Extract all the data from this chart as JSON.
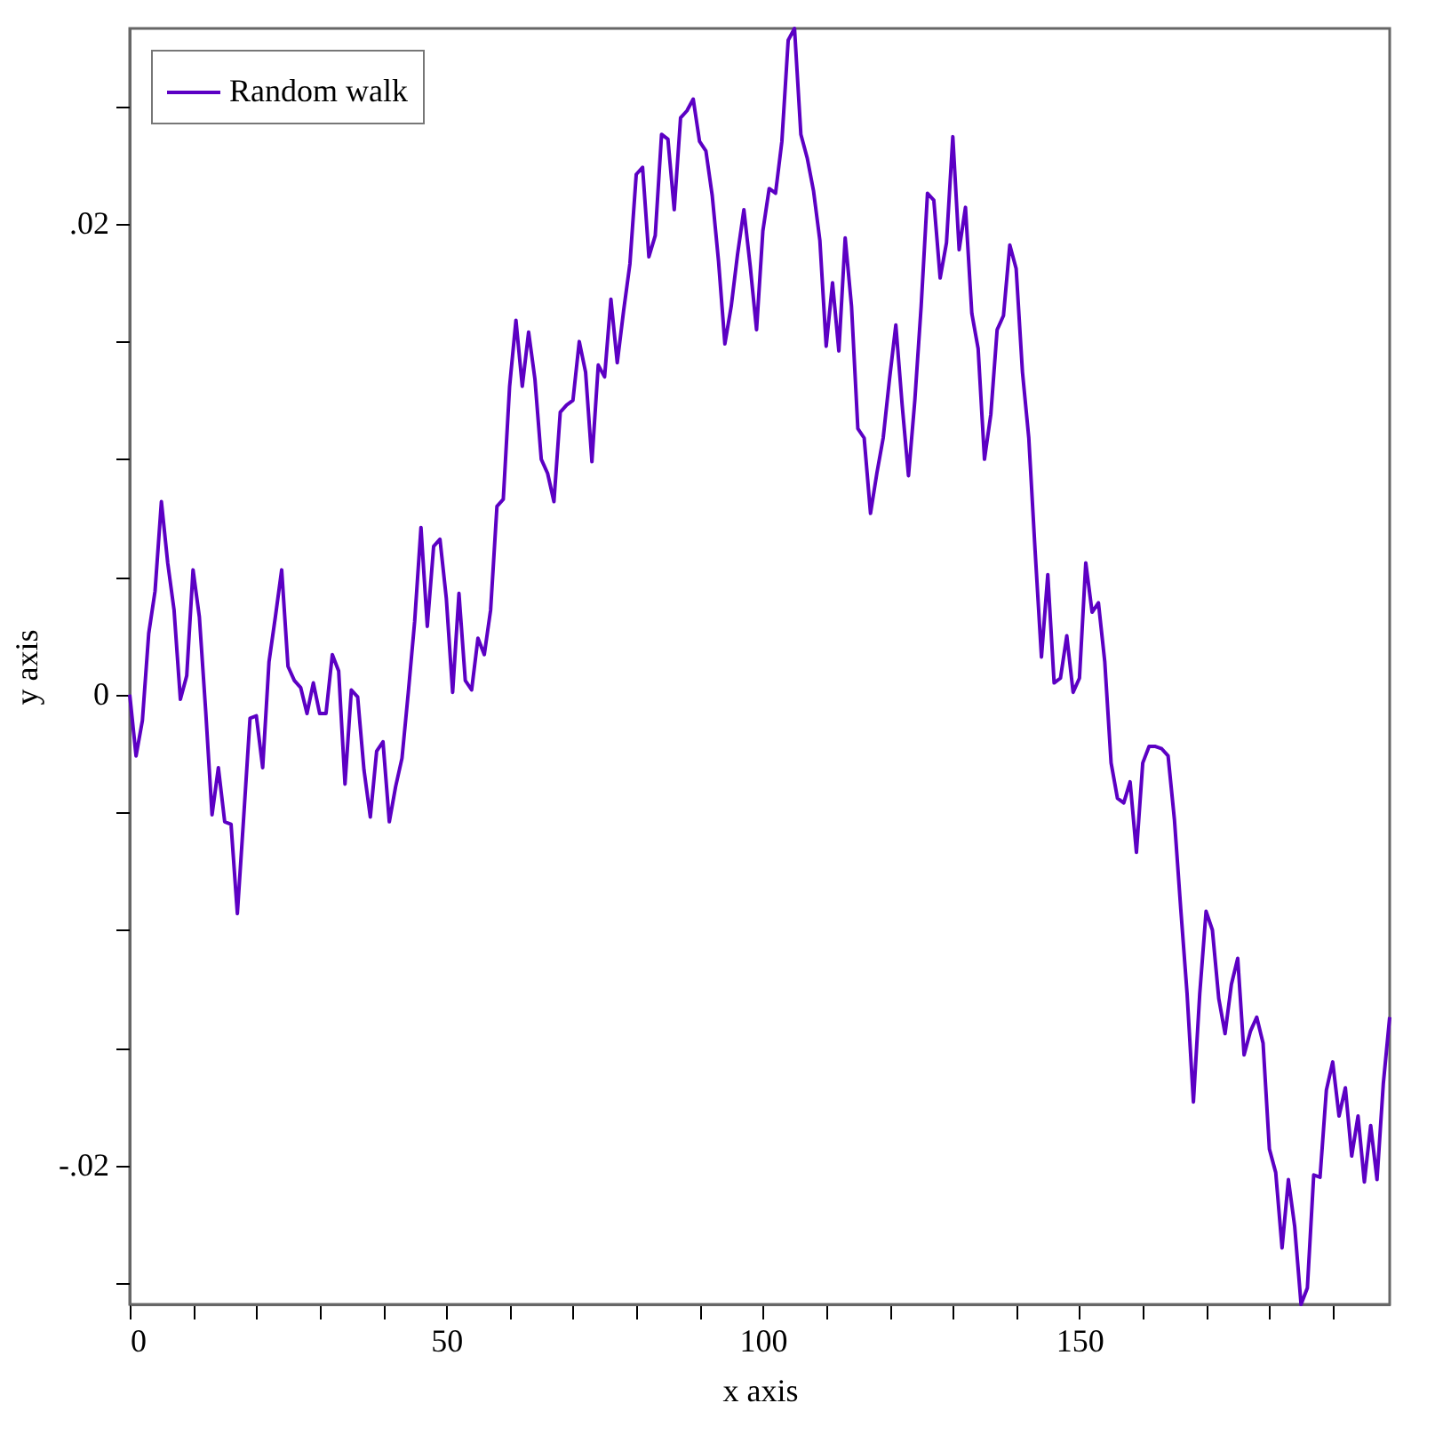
{
  "chart_data": {
    "type": "line",
    "xlabel": "x axis",
    "ylabel": "y axis",
    "legend": "top left",
    "grid": false,
    "x": [
      0,
      1,
      2,
      3,
      4,
      5,
      6,
      7,
      8,
      9,
      10,
      11,
      12,
      13,
      14,
      15,
      16,
      17,
      18,
      19,
      20,
      21,
      22,
      23,
      24,
      25,
      26,
      27,
      28,
      29,
      30,
      31,
      32,
      33,
      34,
      35,
      36,
      37,
      38,
      39,
      40,
      41,
      42,
      43,
      44,
      45,
      46,
      47,
      48,
      49,
      50,
      51,
      52,
      53,
      54,
      55,
      56,
      57,
      58,
      59,
      60,
      61,
      62,
      63,
      64,
      65,
      66,
      67,
      68,
      69,
      70,
      71,
      72,
      73,
      74,
      75,
      76,
      77,
      78,
      79,
      80,
      81,
      82,
      83,
      84,
      85,
      86,
      87,
      88,
      89,
      90,
      91,
      92,
      93,
      94,
      95,
      96,
      97,
      98,
      99,
      100,
      101,
      102,
      103,
      104,
      105,
      106,
      107,
      108,
      109,
      110,
      111,
      112,
      113,
      114,
      115,
      116,
      117,
      118,
      119,
      120,
      121,
      122,
      123,
      124,
      125,
      126,
      127,
      128,
      129,
      130,
      131,
      132,
      133,
      134,
      135,
      136,
      137,
      138,
      139,
      140,
      141,
      142,
      143,
      144,
      145,
      146,
      147,
      148,
      149,
      150,
      151,
      152,
      153,
      154,
      155,
      156,
      157,
      158,
      159,
      160,
      161,
      162,
      163,
      164,
      165,
      166,
      167,
      168,
      169,
      170,
      171,
      172,
      173,
      174,
      175,
      176,
      177,
      178,
      179,
      180,
      181,
      182,
      183,
      184,
      185,
      186,
      187,
      188,
      189,
      190,
      191,
      192,
      193,
      194,
      195,
      196,
      197,
      198,
      199
    ],
    "xlim": [
      0,
      199
    ],
    "ylim": [
      -0.0259,
      0.0283
    ],
    "xticks": [
      0,
      {
        "value": 10,
        "label": null
      },
      {
        "value": 20,
        "label": null
      },
      {
        "value": 30,
        "label": null
      },
      {
        "value": 40,
        "label": null
      },
      50,
      {
        "value": 60,
        "label": null
      },
      {
        "value": 70,
        "label": null
      },
      {
        "value": 80,
        "label": null
      },
      {
        "value": 90,
        "label": null
      },
      100,
      {
        "value": 110,
        "label": null
      },
      {
        "value": 120,
        "label": null
      },
      {
        "value": 130,
        "label": null
      },
      {
        "value": 140,
        "label": null
      },
      150,
      {
        "value": 160,
        "label": null
      },
      {
        "value": 170,
        "label": null
      },
      {
        "value": 180,
        "label": null
      },
      {
        "value": 190,
        "label": null
      }
    ],
    "yticks": [
      {
        "value": -0.025,
        "label": null
      },
      {
        "value": -0.02,
        "label": "-.02"
      },
      {
        "value": -0.015,
        "label": null
      },
      {
        "value": -0.01,
        "label": null
      },
      {
        "value": -0.005,
        "label": null
      },
      0,
      {
        "value": 0.005,
        "label": null
      },
      {
        "value": 0.01,
        "label": null
      },
      {
        "value": 0.015,
        "label": null
      },
      {
        "value": 0.02,
        "label": ".02"
      },
      {
        "value": 0.025,
        "label": null
      }
    ],
    "series": [
      {
        "name": "Random walk",
        "color": "#5c00c4",
        "values": [
          0,
          -0.0026,
          -0.0011,
          0.0026,
          0.0044,
          0.0082,
          0.0056,
          0.0036,
          -0.0002,
          0.0008,
          0.0053,
          0.0033,
          -0.0007,
          -0.0051,
          -0.0031,
          -0.0054,
          -0.0055,
          -0.0093,
          -0.0052,
          -0.001,
          -0.0009,
          -0.0031,
          0.0014,
          0.0033,
          0.0053,
          0.0012,
          0.0006,
          0.0003,
          -0.0008,
          0.0005,
          -0.0008,
          -0.0008,
          0.0017,
          0.001,
          -0.0038,
          0.0002,
          -0.0001,
          -0.0032,
          -0.0052,
          -0.0024,
          -0.002,
          -0.0054,
          -0.0039,
          -0.0027,
          0.0001,
          0.0031,
          0.0071,
          0.0029,
          0.0063,
          0.0066,
          0.0041,
          0.0001,
          0.0043,
          0.0006,
          0.0002,
          0.0024,
          0.0017,
          0.0036,
          0.008,
          0.0083,
          0.0131,
          0.0159,
          0.0131,
          0.0154,
          0.0134,
          0.01,
          0.0094,
          0.0082,
          0.012,
          0.0123,
          0.0125,
          0.015,
          0.0137,
          0.0099,
          0.014,
          0.0135,
          0.0168,
          0.0141,
          0.0163,
          0.0183,
          0.0221,
          0.0224,
          0.0186,
          0.0195,
          0.0238,
          0.0236,
          0.0206,
          0.0245,
          0.0248,
          0.0253,
          0.0235,
          0.0231,
          0.0212,
          0.0184,
          0.0149,
          0.0165,
          0.0187,
          0.0206,
          0.0182,
          0.0155,
          0.0197,
          0.0215,
          0.0213,
          0.0235,
          0.0278,
          0.0283,
          0.0238,
          0.0228,
          0.0214,
          0.0193,
          0.0148,
          0.0175,
          0.0146,
          0.0194,
          0.0165,
          0.0113,
          0.0109,
          0.0077,
          0.0094,
          0.0109,
          0.0134,
          0.0157,
          0.0123,
          0.0093,
          0.0125,
          0.0165,
          0.0213,
          0.021,
          0.0177,
          0.0192,
          0.0237,
          0.0189,
          0.0207,
          0.0162,
          0.0147,
          0.01,
          0.0119,
          0.0155,
          0.0161,
          0.0191,
          0.0181,
          0.0137,
          0.0109,
          0.0061,
          0.0016,
          0.0051,
          0.0005,
          0.0007,
          0.0025,
          0.0001,
          0.0007,
          0.0056,
          0.0035,
          0.0039,
          0.0014,
          -0.0029,
          -0.0044,
          -0.0046,
          -0.0037,
          -0.0067,
          -0.0029,
          -0.0022,
          -0.0022,
          -0.0023,
          -0.0026,
          -0.0053,
          -0.0091,
          -0.0127,
          -0.0173,
          -0.0127,
          -0.0092,
          -0.01,
          -0.0129,
          -0.0144,
          -0.0123,
          -0.0112,
          -0.0153,
          -0.0143,
          -0.0137,
          -0.0148,
          -0.0193,
          -0.0203,
          -0.0235,
          -0.0206,
          -0.0226,
          -0.0259,
          -0.0252,
          -0.0204,
          -0.0205,
          -0.0168,
          -0.0156,
          -0.0179,
          -0.0167,
          -0.0196,
          -0.0179,
          -0.0207,
          -0.0183,
          -0.0206,
          -0.0165,
          -0.0137
        ]
      }
    ]
  }
}
